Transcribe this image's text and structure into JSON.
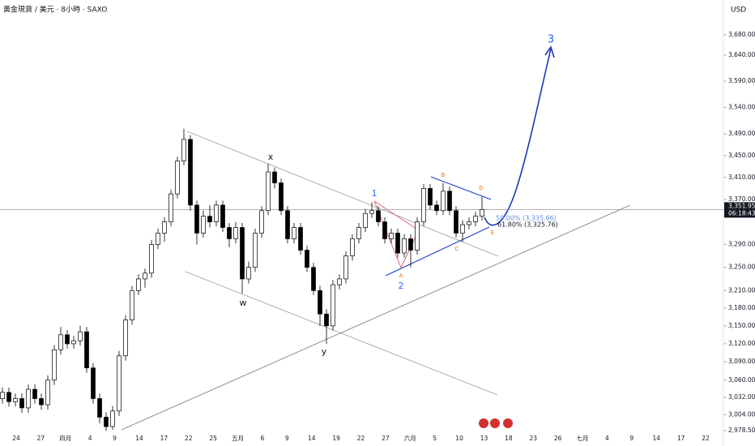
{
  "header": {
    "title": "黃金現貨 / 美元 · 8小時 · SAXO",
    "currency": "USD"
  },
  "chart_data": {
    "type": "candlestick",
    "log_scale": true,
    "ylim": [
      2967,
      3749
    ],
    "yticks": [
      {
        "value": 3680,
        "label": "3,680.00"
      },
      {
        "value": 3640,
        "label": "3,640.00"
      },
      {
        "value": 3590,
        "label": "3,590.00"
      },
      {
        "value": 3540,
        "label": "3,540.00"
      },
      {
        "value": 3490,
        "label": "3,490.00"
      },
      {
        "value": 3450,
        "label": "3,450.00"
      },
      {
        "value": 3410,
        "label": "3,410.00"
      },
      {
        "value": 3370,
        "label": "3,370.00"
      },
      {
        "value": 3290,
        "label": "3,290.00"
      },
      {
        "value": 3250,
        "label": "3,250.00"
      },
      {
        "value": 3210,
        "label": "3,210.00"
      },
      {
        "value": 3180,
        "label": "3,180.00"
      },
      {
        "value": 3150,
        "label": "3,150.00"
      },
      {
        "value": 3120,
        "label": "3,120.00"
      },
      {
        "value": 3090,
        "label": "3,090.00"
      },
      {
        "value": 3060,
        "label": "3,060.00"
      },
      {
        "value": 3032,
        "label": "3,032.00"
      },
      {
        "value": 3004,
        "label": "3,004.00"
      },
      {
        "value": 2978.5,
        "label": "2,978.50"
      }
    ],
    "x_labels": [
      "24",
      "27",
      "四月",
      "4",
      "9",
      "14",
      "17",
      "22",
      "25",
      "五月",
      "6",
      "9",
      "14",
      "19",
      "22",
      "27",
      "六月",
      "5",
      "10",
      "13",
      "18",
      "23",
      "26",
      "七月",
      "4",
      "9",
      "14",
      "17",
      "22"
    ],
    "up_color": "#ffffff",
    "down_color": "#000000",
    "open": [
      3030,
      3040,
      3025,
      3030,
      3015,
      3045,
      3030,
      3020,
      3060,
      3110,
      3135,
      3120,
      3125,
      3140,
      3080,
      3030,
      3000,
      2985,
      3010,
      3100,
      3160,
      3210,
      3230,
      3240,
      3290,
      3310,
      3330,
      3380,
      3440,
      3480,
      3360,
      3310,
      3340,
      3330,
      3360,
      3320,
      3300,
      3320,
      3230,
      3250,
      3310,
      3350,
      3420,
      3400,
      3350,
      3300,
      3320,
      3280,
      3250,
      3210,
      3170,
      3150,
      3220,
      3230,
      3270,
      3300,
      3320,
      3345,
      3350,
      3330,
      3300,
      3310,
      3275,
      3300,
      3280,
      3330,
      3390,
      3360,
      3350,
      3385,
      3350,
      3310,
      3325,
      3330,
      3340
    ],
    "high": [
      3048,
      3048,
      3038,
      3038,
      3053,
      3053,
      3038,
      3068,
      3118,
      3148,
      3143,
      3133,
      3150,
      3148,
      3088,
      3038,
      3008,
      3018,
      3108,
      3168,
      3218,
      3238,
      3248,
      3298,
      3318,
      3338,
      3388,
      3448,
      3500,
      3488,
      3368,
      3350,
      3360,
      3368,
      3368,
      3328,
      3330,
      3328,
      3260,
      3318,
      3358,
      3435,
      3428,
      3408,
      3358,
      3328,
      3328,
      3288,
      3258,
      3218,
      3178,
      3228,
      3238,
      3278,
      3308,
      3328,
      3353,
      3365,
      3358,
      3338,
      3318,
      3318,
      3308,
      3308,
      3338,
      3398,
      3398,
      3368,
      3400,
      3393,
      3358,
      3333,
      3338,
      3348,
      3375
    ],
    "low": [
      3022,
      3017,
      3017,
      3007,
      3007,
      3022,
      3012,
      3012,
      3052,
      3102,
      3112,
      3112,
      3117,
      3072,
      3022,
      2990,
      2978,
      2980,
      3002,
      3092,
      3152,
      3202,
      3215,
      3232,
      3282,
      3295,
      3322,
      3372,
      3432,
      3350,
      3290,
      3302,
      3320,
      3322,
      3312,
      3285,
      3292,
      3205,
      3222,
      3242,
      3302,
      3342,
      3390,
      3342,
      3292,
      3292,
      3272,
      3242,
      3202,
      3150,
      3120,
      3142,
      3212,
      3222,
      3262,
      3292,
      3312,
      3337,
      3322,
      3292,
      3292,
      3267,
      3267,
      3250,
      3272,
      3322,
      3352,
      3342,
      3342,
      3342,
      3302,
      3295,
      3317,
      3322,
      3332
    ],
    "close": [
      3040,
      3025,
      3030,
      3015,
      3045,
      3030,
      3020,
      3060,
      3110,
      3135,
      3120,
      3125,
      3140,
      3080,
      3030,
      3000,
      2985,
      3010,
      3100,
      3160,
      3210,
      3230,
      3240,
      3290,
      3310,
      3330,
      3380,
      3440,
      3480,
      3360,
      3310,
      3340,
      3330,
      3360,
      3320,
      3300,
      3320,
      3230,
      3250,
      3310,
      3350,
      3420,
      3400,
      3350,
      3300,
      3320,
      3280,
      3250,
      3210,
      3170,
      3150,
      3220,
      3230,
      3270,
      3300,
      3320,
      3345,
      3350,
      3330,
      3300,
      3310,
      3275,
      3300,
      3280,
      3330,
      3390,
      3360,
      3350,
      3385,
      3350,
      3310,
      3325,
      3330,
      3340,
      3352
    ],
    "last_price": {
      "value": 3351.95,
      "label": "3,351.95"
    },
    "countdown": "06:18:43",
    "annotations": {
      "x": "x",
      "w": "w",
      "y": "y",
      "wave1": "1",
      "wave2": "2",
      "wave3": "3",
      "A": "A",
      "B": "B",
      "C": "C",
      "D": "D",
      "E": "E",
      "fib50": "50.00% (3,335.66)",
      "fib618": "61.80% (3,325.76)"
    }
  }
}
